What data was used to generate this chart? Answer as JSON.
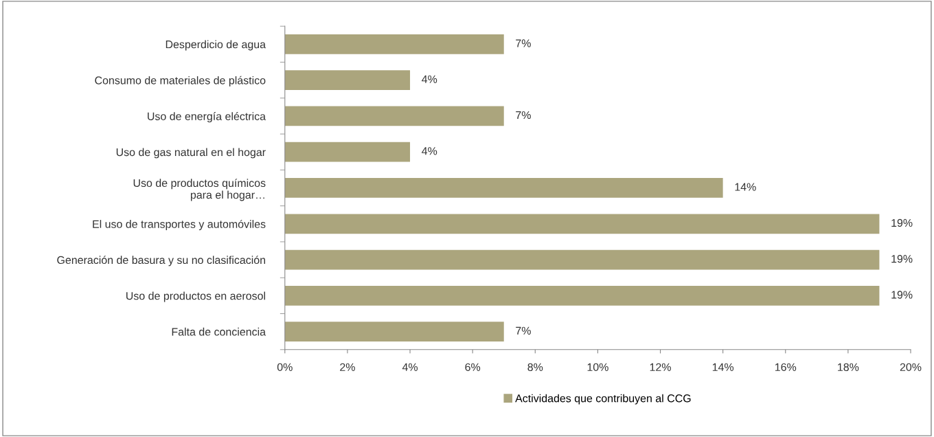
{
  "chart_data": {
    "type": "bar",
    "orientation": "horizontal",
    "categories": [
      "Desperdicio de agua",
      "Consumo de materiales de plástico",
      "Uso de energía eléctrica",
      "Uso de gas natural en el hogar",
      "Uso de productos químicos\npara el hogar…",
      "El uso de transportes y automóviles",
      "Generación de basura y su no clasificación",
      "Uso de productos en aerosol",
      "Falta de conciencia"
    ],
    "series": [
      {
        "name": "Actividades que contribuyen al CCG",
        "color": "#aba57d",
        "values": [
          7,
          4,
          7,
          4,
          14,
          19,
          19,
          19,
          7
        ],
        "value_labels": [
          "7%",
          "4%",
          "7%",
          "4%",
          "14%",
          "19%",
          "19%",
          "19%",
          "7%"
        ]
      }
    ],
    "xlim": [
      0,
      20
    ],
    "xticks": [
      {
        "value": 0,
        "label": "0%"
      },
      {
        "value": 2,
        "label": "2%"
      },
      {
        "value": 4,
        "label": "4%"
      },
      {
        "value": 6,
        "label": "6%"
      },
      {
        "value": 8,
        "label": "8%"
      },
      {
        "value": 10,
        "label": "10%"
      },
      {
        "value": 12,
        "label": "12%"
      },
      {
        "value": 14,
        "label": "14%"
      },
      {
        "value": 16,
        "label": "16%"
      },
      {
        "value": 18,
        "label": "18%"
      },
      {
        "value": 20,
        "label": "20%"
      }
    ],
    "grid": false,
    "legend": "bottom"
  }
}
